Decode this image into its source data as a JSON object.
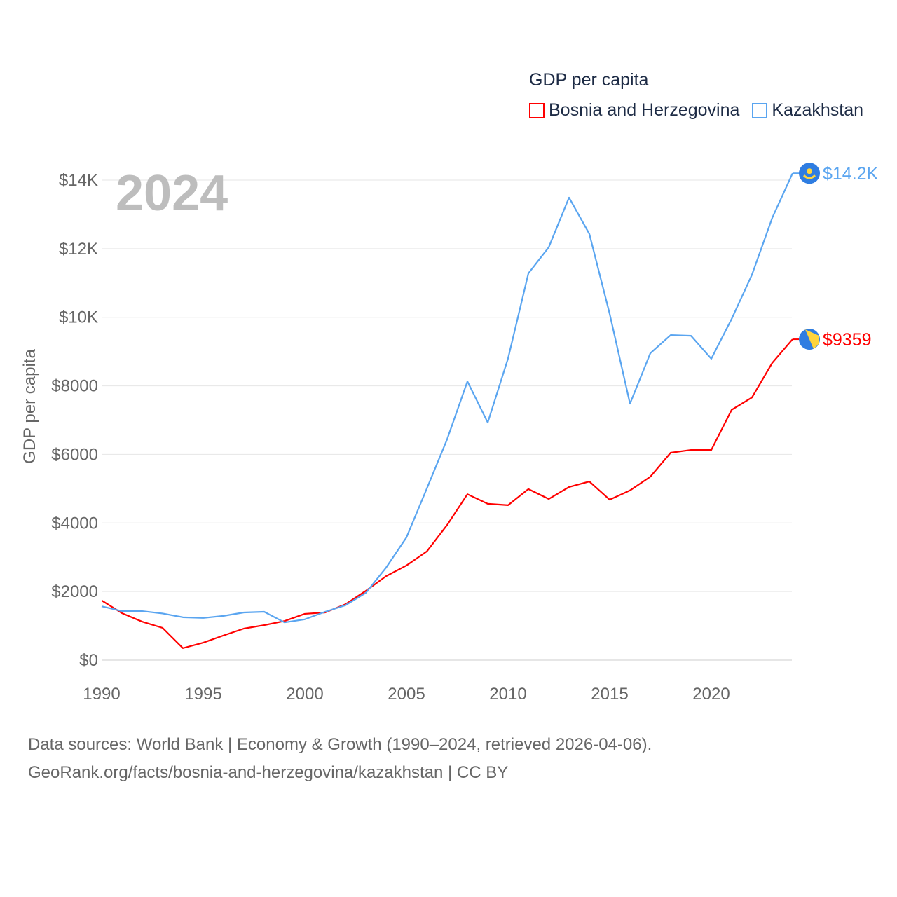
{
  "chart_data": {
    "type": "line",
    "title": "GDP per capita",
    "year_label": "2024",
    "ylabel": "GDP per capita",
    "xlabel": "",
    "ylim": [
      0,
      14000
    ],
    "xlim": [
      1990,
      2024
    ],
    "grid": true,
    "legend_placement": "top-right",
    "y_ticks": [
      {
        "value": 0,
        "label": "$0"
      },
      {
        "value": 2000,
        "label": "$2000"
      },
      {
        "value": 4000,
        "label": "$4000"
      },
      {
        "value": 6000,
        "label": "$6000"
      },
      {
        "value": 8000,
        "label": "$8000"
      },
      {
        "value": 10000,
        "label": "$10K"
      },
      {
        "value": 12000,
        "label": "$12K"
      },
      {
        "value": 14000,
        "label": "$14K"
      }
    ],
    "x_ticks": [
      {
        "value": 1990,
        "label": "1990"
      },
      {
        "value": 1995,
        "label": "1995"
      },
      {
        "value": 2000,
        "label": "2000"
      },
      {
        "value": 2005,
        "label": "2005"
      },
      {
        "value": 2010,
        "label": "2010"
      },
      {
        "value": 2015,
        "label": "2015"
      },
      {
        "value": 2020,
        "label": "2020"
      }
    ],
    "x": [
      1990,
      1991,
      1992,
      1993,
      1994,
      1995,
      1996,
      1997,
      1998,
      1999,
      2000,
      2001,
      2002,
      2003,
      2004,
      2005,
      2006,
      2007,
      2008,
      2009,
      2010,
      2011,
      2012,
      2013,
      2014,
      2015,
      2016,
      2017,
      2018,
      2019,
      2020,
      2021,
      2022,
      2023,
      2024
    ],
    "series": [
      {
        "name": "Bosnia and Herzegovina",
        "color": "#ff0000",
        "end_label": "$9359",
        "flag": "bosnia-flag",
        "values": [
          1740,
          1370,
          1120,
          940,
          350,
          510,
          720,
          920,
          1020,
          1140,
          1350,
          1390,
          1630,
          2020,
          2450,
          2760,
          3170,
          3940,
          4840,
          4560,
          4520,
          4990,
          4700,
          5050,
          5210,
          4680,
          4950,
          5350,
          6050,
          6130,
          6130,
          7300,
          7660,
          8670,
          9359
        ]
      },
      {
        "name": "Kazakhstan",
        "color": "#5aa5f0",
        "end_label": "$14.2K",
        "flag": "kazakhstan-flag",
        "values": [
          1570,
          1430,
          1430,
          1360,
          1250,
          1230,
          1290,
          1390,
          1410,
          1100,
          1190,
          1410,
          1600,
          1960,
          2700,
          3580,
          5000,
          6440,
          8130,
          6930,
          8800,
          11280,
          12040,
          13490,
          12430,
          10100,
          7480,
          8950,
          9480,
          9460,
          8790,
          9950,
          11240,
          12900,
          14200
        ]
      }
    ]
  },
  "footer": {
    "line1": "Data sources: World Bank | Economy & Growth (1990–2024, retrieved 2026-04-06).",
    "line2": "GeoRank.org/facts/bosnia-and-herzegovina/kazakhstan | CC BY"
  }
}
